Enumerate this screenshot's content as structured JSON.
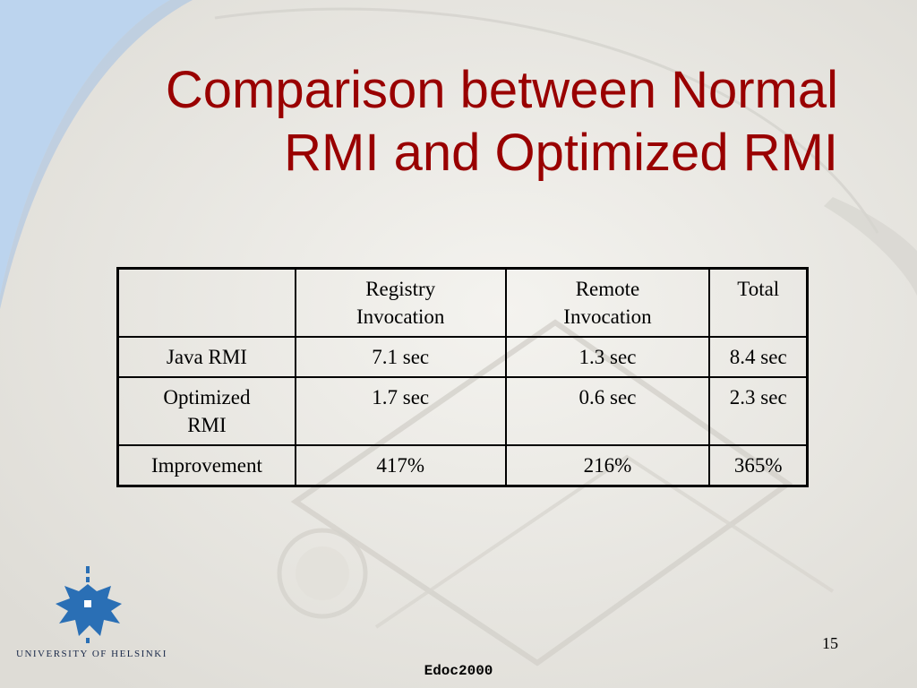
{
  "slide": {
    "title_lines": [
      "Comparison between Normal",
      "RMI and Optimized RMI"
    ],
    "page_number": "15",
    "footer": "Edoc2000",
    "logo_text": "UNIVERSITY OF HELSINKI",
    "colors": {
      "title": "#990000",
      "background": "#e9e8e3",
      "accent_blue": "#bcd4ee",
      "logo_blue": "#2a6fb5"
    },
    "logo_icon": "helsinki-university-emblem-icon"
  },
  "table": {
    "header": [
      [
        ""
      ],
      [
        "Registry",
        "Invocation"
      ],
      [
        "Remote",
        "Invocation"
      ],
      [
        "Total"
      ]
    ],
    "rows": [
      {
        "label": [
          "Java RMI"
        ],
        "cells": [
          "7.1 sec",
          "1.3 sec",
          "8.4 sec"
        ]
      },
      {
        "label": [
          "Optimized",
          "RMI"
        ],
        "cells": [
          "1.7 sec",
          "0.6 sec",
          "2.3 sec"
        ]
      },
      {
        "label": [
          "Improvement"
        ],
        "cells": [
          "417%",
          "216%",
          "365%"
        ]
      }
    ]
  }
}
